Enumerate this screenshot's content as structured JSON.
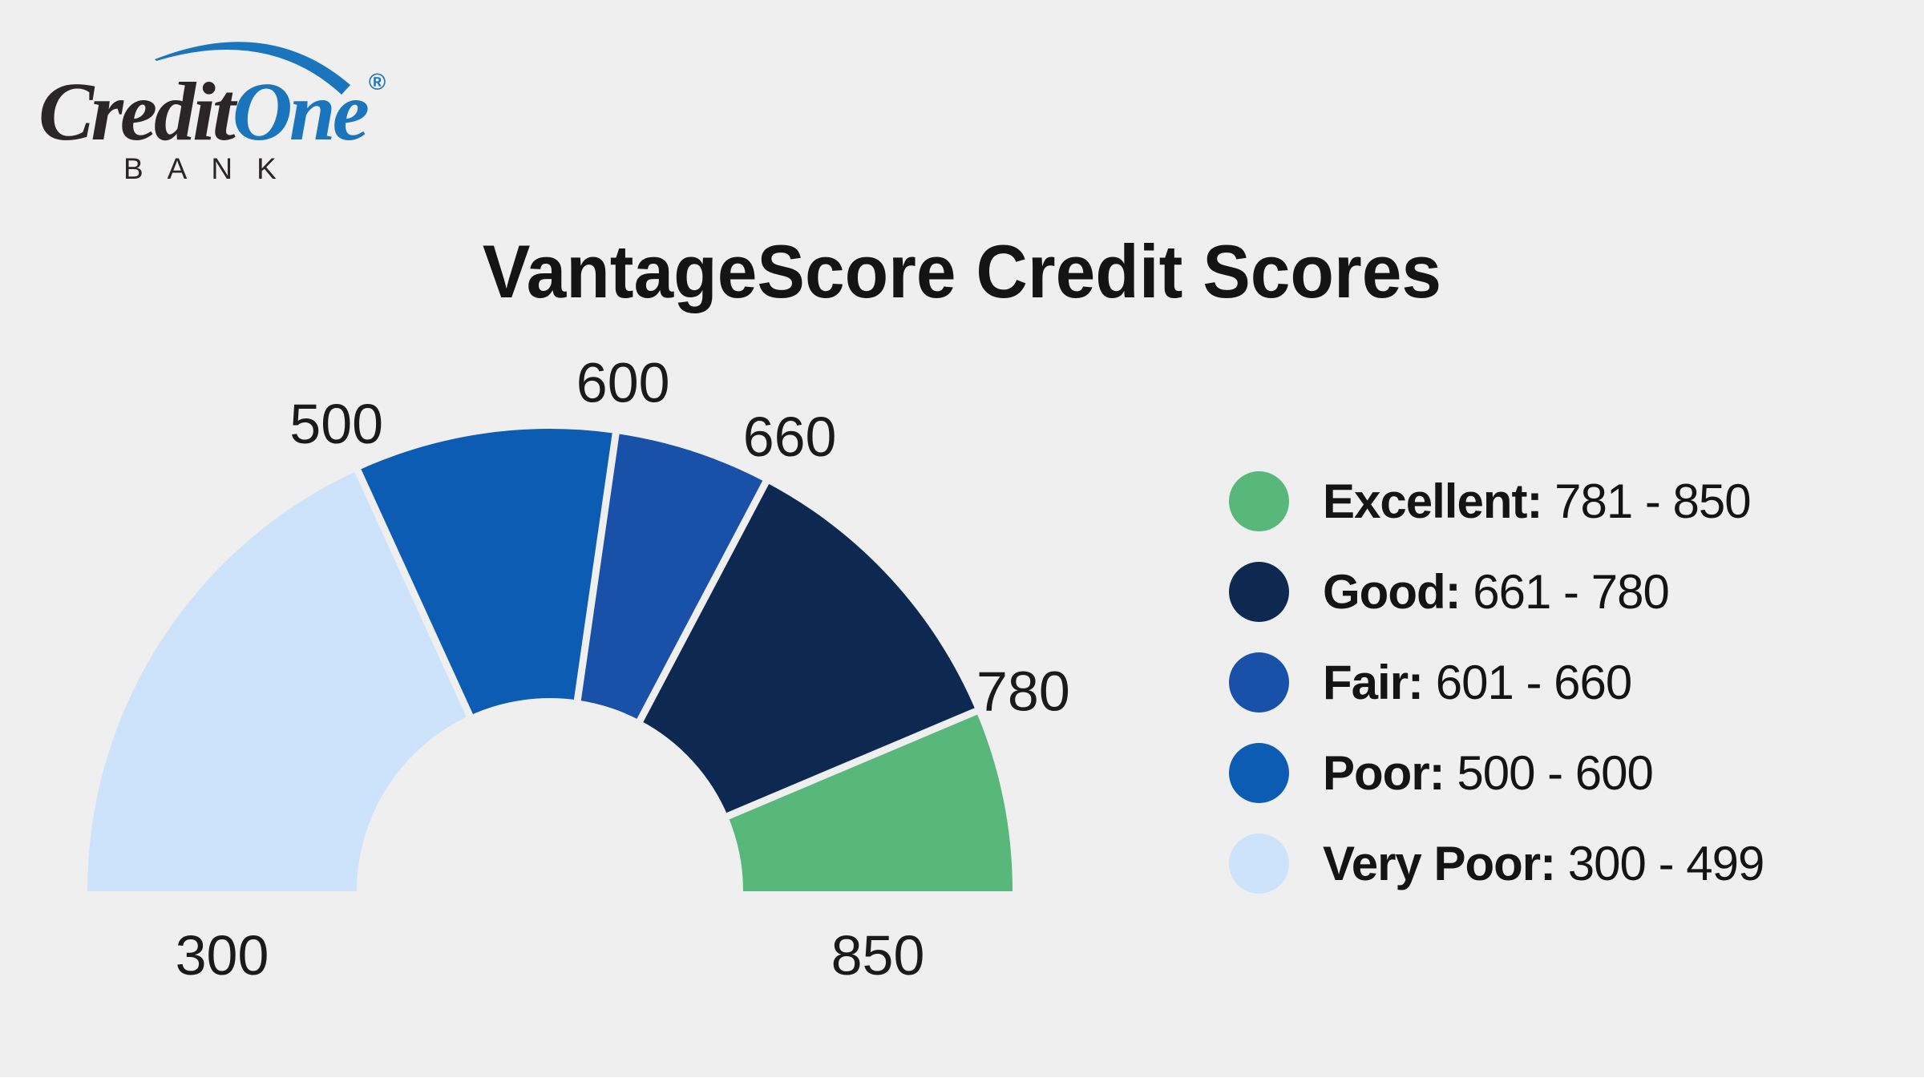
{
  "page": {
    "background": "#EFEFEF",
    "text_color": "#141414",
    "bottom_strip_color": "#FFFFFF"
  },
  "logo": {
    "credit": "Credit",
    "one": "One",
    "registered": "®",
    "bank": "BANK",
    "brand_blue": "#1B75BC",
    "brand_dark": "#2A2627"
  },
  "title": "VantageScore Credit Scores",
  "chart_data": {
    "type": "gauge",
    "title": "VantageScore Credit Scores",
    "min": 300,
    "max": 850,
    "tick_labels": [
      300,
      500,
      600,
      660,
      780,
      850
    ],
    "segments": [
      {
        "label": "Very Poor",
        "from": 300,
        "to": 500,
        "color": "#CDE2FB"
      },
      {
        "label": "Poor",
        "from": 500,
        "to": 600,
        "color": "#0C5CB3"
      },
      {
        "label": "Fair",
        "from": 600,
        "to": 660,
        "color": "#1950A8"
      },
      {
        "label": "Good",
        "from": 660,
        "to": 780,
        "color": "#0E2951"
      },
      {
        "label": "Excellent",
        "from": 780,
        "to": 850,
        "color": "#58B87C"
      }
    ],
    "grid": false,
    "legend_position": "right"
  },
  "legend": {
    "items": [
      {
        "label": "Excellent:",
        "range": "781 - 850",
        "color": "#58B87C"
      },
      {
        "label": "Good:",
        "range": "661 - 780",
        "color": "#0E2951"
      },
      {
        "label": "Fair:",
        "range": "601 - 660",
        "color": "#1950A8"
      },
      {
        "label": "Poor:",
        "range": "500 - 600",
        "color": "#0C5CB3"
      },
      {
        "label": "Very Poor:",
        "range": "300 - 499",
        "color": "#CDE2FB"
      }
    ]
  }
}
